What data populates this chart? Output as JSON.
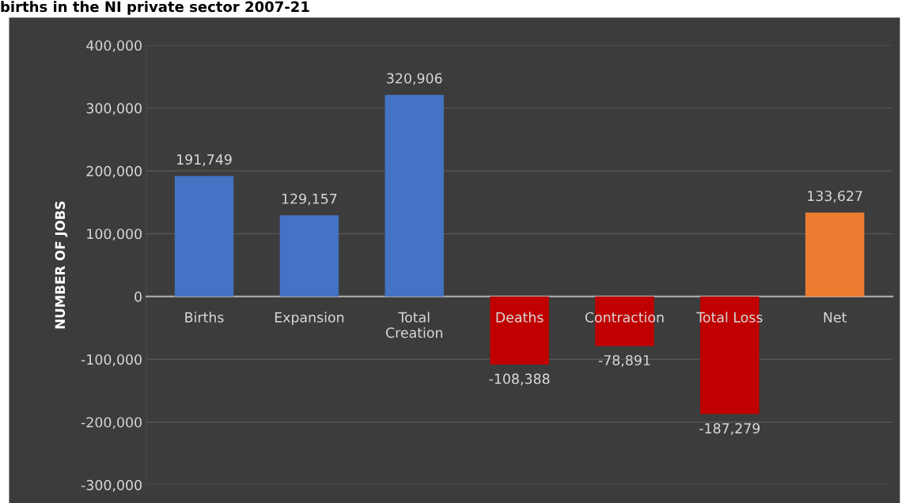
{
  "chart_data": {
    "type": "bar",
    "title": "births in the NI private sector 2007-21",
    "ylabel": "NUMBER OF JOBS",
    "categories": [
      "Births",
      "Expansion",
      "Total\nCreation",
      "Deaths",
      "Contraction",
      "Total Loss",
      "Net"
    ],
    "values": [
      191749,
      129157,
      320906,
      -108388,
      -78891,
      -187279,
      133627
    ],
    "colors": [
      "#4472c4",
      "#4472c4",
      "#4472c4",
      "#c00000",
      "#c00000",
      "#c00000",
      "#ed7d31"
    ],
    "value_labels": [
      "191,749",
      "129,157",
      "320,906",
      "-108,388",
      "-78,891",
      "-187,279",
      "133,627"
    ],
    "ylim": [
      -300000,
      400000
    ],
    "yticks": [
      {
        "value": -300000,
        "label": "-300,000"
      },
      {
        "value": -200000,
        "label": "-200,000"
      },
      {
        "value": -100000,
        "label": "-100,000"
      },
      0,
      {
        "value": 100000,
        "label": "100,000"
      },
      {
        "value": 200000,
        "label": "200,000"
      },
      {
        "value": 300000,
        "label": "300,000"
      },
      {
        "value": 400000,
        "label": "400,000"
      }
    ],
    "grid": "y",
    "legend": false
  }
}
